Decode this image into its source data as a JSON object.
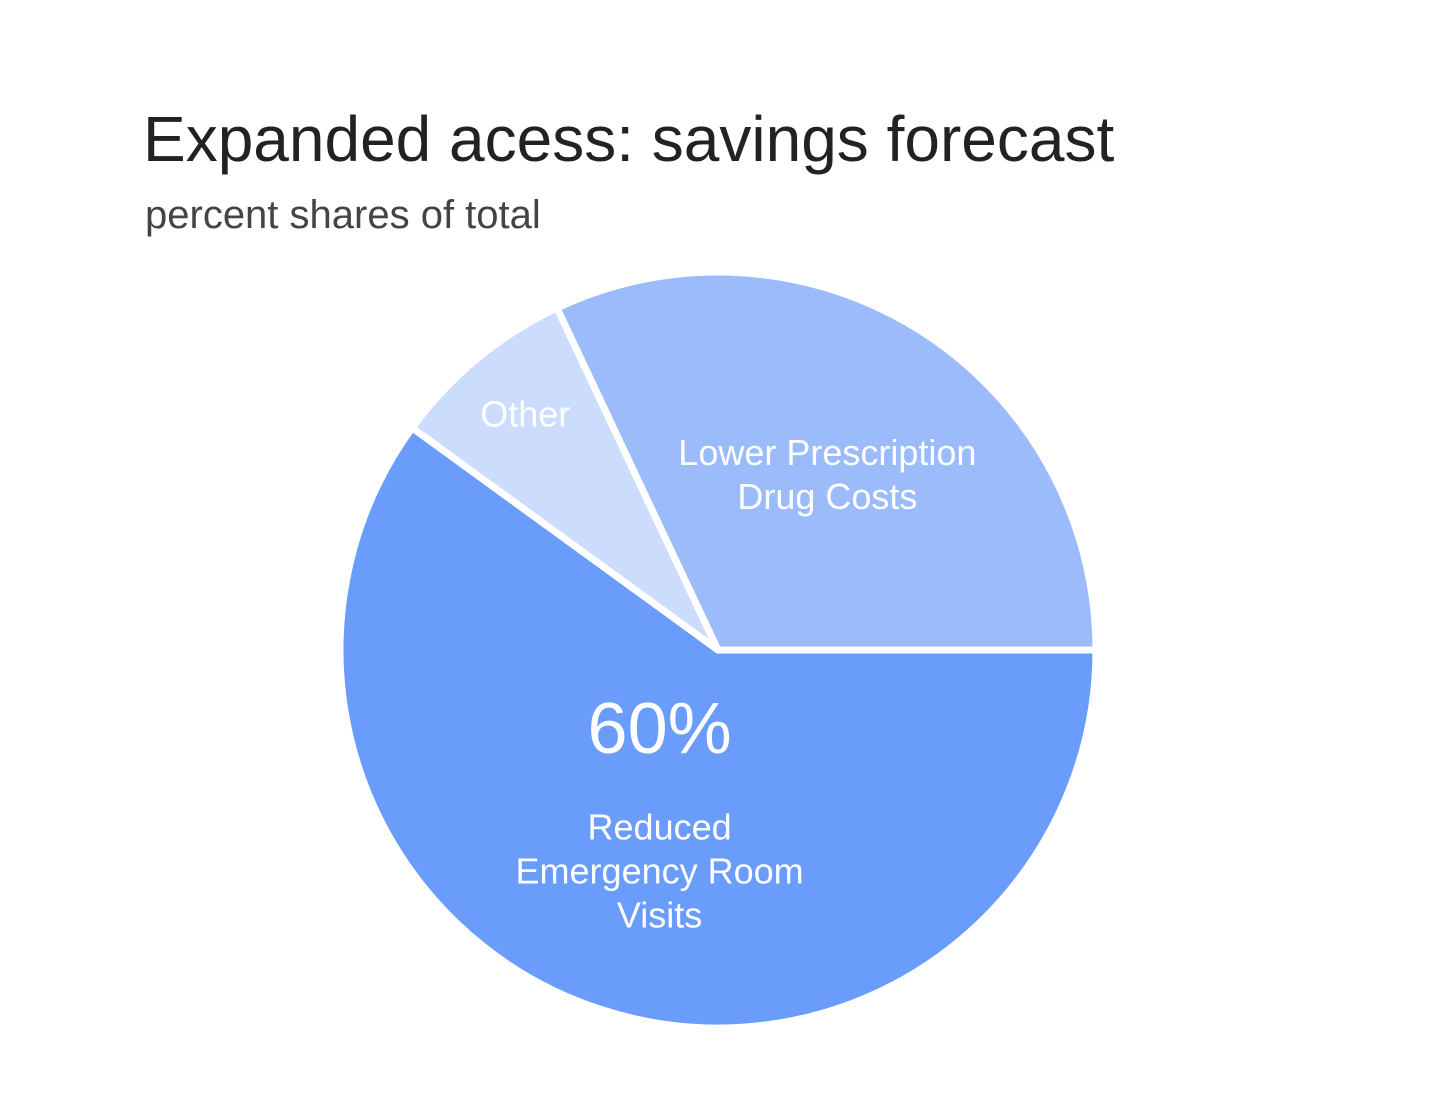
{
  "chart_data": {
    "type": "pie",
    "title": "Expanded acess: savings forecast",
    "subtitle": "percent shares of total",
    "slices": [
      {
        "label": "Reduced Emergency Room Visits",
        "label_lines": [
          "Reduced",
          "Emergency Room",
          "Visits"
        ],
        "value": 60,
        "value_label": "60%",
        "color": "#6a9cfb"
      },
      {
        "label": "Other",
        "label_lines": [
          "Other"
        ],
        "value": 8,
        "color": "#ccdcfd"
      },
      {
        "label": "Lower Prescription Drug Costs",
        "label_lines": [
          "Lower Prescription",
          "Drug Costs"
        ],
        "value": 32,
        "color": "#9bbbfb"
      }
    ],
    "start_angle": "3 o'clock, clockwise",
    "separator_color": "#ffffff"
  }
}
